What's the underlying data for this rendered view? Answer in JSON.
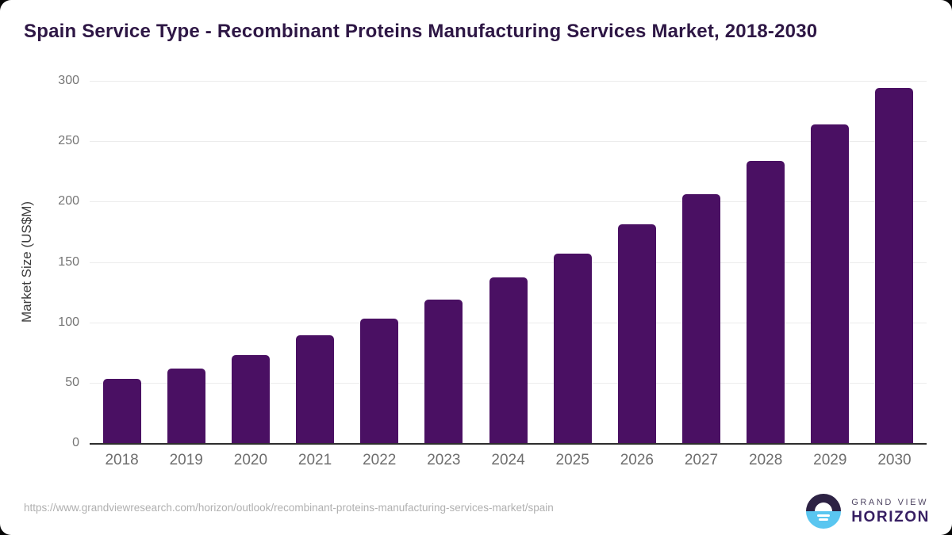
{
  "chart_data": {
    "type": "bar",
    "title": "Spain Service Type - Recombinant Proteins Manufacturing Services Market, 2018-2030",
    "ylabel": "Market Size (US$M)",
    "xlabel": "",
    "categories": [
      "2018",
      "2019",
      "2020",
      "2021",
      "2022",
      "2023",
      "2024",
      "2025",
      "2026",
      "2027",
      "2028",
      "2029",
      "2030"
    ],
    "values": [
      53,
      62,
      73,
      89,
      103,
      119,
      137,
      157,
      181,
      206,
      234,
      264,
      294
    ],
    "ylim": [
      0,
      300
    ],
    "yticks": [
      0,
      50,
      100,
      150,
      200,
      250,
      300
    ],
    "grid": true,
    "legend": false,
    "bar_color": "#4A1063"
  },
  "footer": {
    "url": "https://www.grandviewresearch.com/horizon/outlook/recombinant-proteins-manufacturing-services-market/spain",
    "logo": {
      "top": "GRAND VIEW",
      "bottom": "HORIZON"
    }
  },
  "colors": {
    "bar": "#4A1063",
    "title_text": "#2e1745",
    "axis_line": "#2e2e2e",
    "gridline": "#ececec",
    "tick_text": "#757575",
    "logo_dark": "#2d2244",
    "logo_blue": "#5ac6f0"
  }
}
